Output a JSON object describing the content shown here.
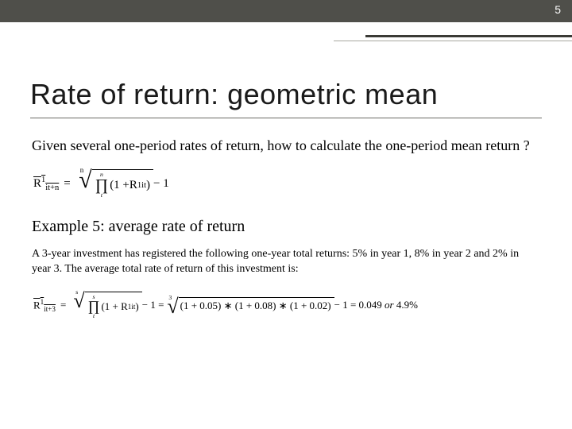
{
  "page_number": "5",
  "title": "Rate of return: geometric mean",
  "intro": "Given several one-period rates of return, how to calculate the one-period mean return ?",
  "formula1": {
    "lhs_base": "R",
    "lhs_sup": "1",
    "lhs_sub": "it+n",
    "root_index": "n",
    "prod_upper": "n",
    "prod_lower": "t",
    "term_prefix": "(1 + ",
    "term_base": "R",
    "term_sup": "1",
    "term_sub": "it",
    "term_suffix": ")",
    "tail": " − 1"
  },
  "example_heading": "Example 5: average rate of return",
  "example_body": "A 3-year investment has registered the following one-year total returns: 5% in year 1, 8% in year 2 and 2% in year 3. The average total rate of return of this investment is:",
  "formula2": {
    "lhs_base": "R",
    "lhs_sup": "1",
    "lhs_sub": "it+3",
    "root_index_a": "s",
    "prod_upper_a": "s",
    "prod_lower_a": "t",
    "term_a": "(1 + R",
    "term_a_sup": "1",
    "term_a_sub": "it",
    "term_a_close": ")",
    "mid": " − 1 = ",
    "root_index_b": "3",
    "expansion": "(1 + 0.05) ∗ (1 + 0.08) ∗ (1 + 0.02)",
    "result_num": " − 1 = 0.049 ",
    "result_or": "or",
    "result_pct": " 4.9%"
  },
  "colors": {
    "header_bg": "#4f4f4a",
    "page_num": "#ffffff",
    "text": "#000000",
    "rule": "#6b6b66"
  }
}
